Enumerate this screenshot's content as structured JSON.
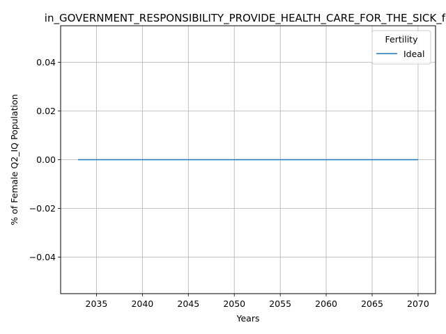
{
  "chart_data": {
    "type": "line",
    "title": "in_GOVERNMENT_RESPONSIBILITY_PROVIDE_HEALTH_CARE_FOR_THE_SICK_fe",
    "xlabel": "Years",
    "ylabel": "% of Female Q2_IQ Population",
    "xlim": [
      2031.1,
      2071.9
    ],
    "ylim": [
      -0.055,
      0.055
    ],
    "xticks": [
      2035,
      2040,
      2045,
      2050,
      2055,
      2060,
      2065,
      2070
    ],
    "yticks": [
      -0.04,
      -0.02,
      0.0,
      0.02,
      0.04
    ],
    "xtick_labels": [
      "2035",
      "2040",
      "2045",
      "2050",
      "2055",
      "2060",
      "2065",
      "2070"
    ],
    "ytick_labels": [
      "−0.04",
      "−0.02",
      "0.00",
      "0.02",
      "0.04"
    ],
    "grid": true,
    "legend": {
      "title": "Fertility",
      "placement": "upper right"
    },
    "series": [
      {
        "name": "Ideal",
        "color": "#1f77b4",
        "x": [
          2033,
          2070
        ],
        "y": [
          0.0,
          0.0
        ]
      }
    ]
  }
}
